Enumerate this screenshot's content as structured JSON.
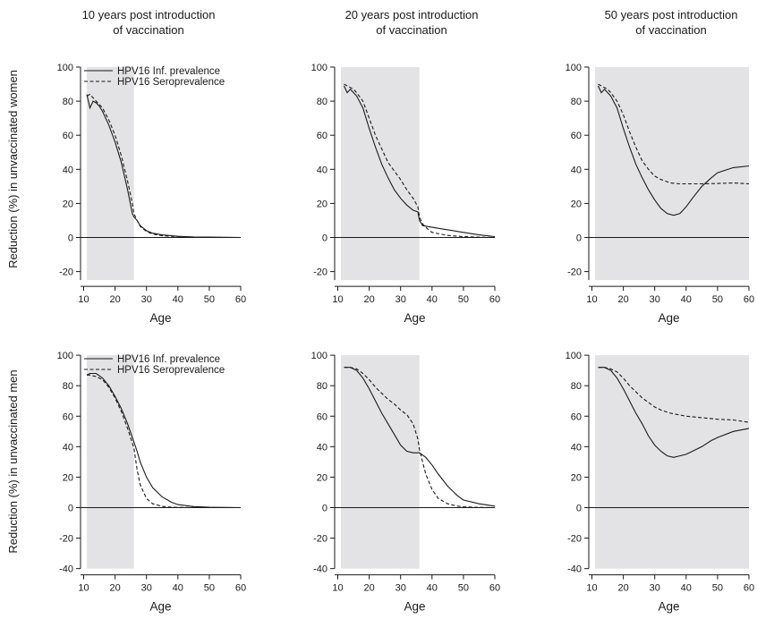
{
  "figure": {
    "column_titles": [
      [
        "10 years post introduction",
        "of vaccination"
      ],
      [
        "20 years post introduction",
        "of vaccination"
      ],
      [
        "50 years post introduction",
        "of vaccination"
      ]
    ],
    "row_labels": [
      "Reduction (%) in unvaccinated women",
      "Reduction (%) in unvaccinated men"
    ]
  },
  "chart_data": [
    {
      "type": "line",
      "row": 0,
      "col": 0,
      "xlabel": "Age",
      "ylabel": "Reduction (%) in unvaccinated women",
      "xlim": [
        9,
        60
      ],
      "ylim": [
        -25,
        100
      ],
      "xticks": [
        10,
        20,
        30,
        40,
        50,
        60
      ],
      "yticks": [
        -20,
        0,
        20,
        40,
        60,
        80,
        100
      ],
      "shaded_region": [
        11,
        26
      ],
      "legend": {
        "position": "top-left",
        "entries": [
          "HPV16 Inf. prevalence",
          "HPV16 Seroprevalence"
        ]
      },
      "series": [
        {
          "name": "HPV16 Inf. prevalence",
          "style": "solid",
          "x": [
            11,
            12,
            13,
            14,
            15,
            16,
            18,
            20,
            22,
            24,
            25.5,
            26,
            27,
            28,
            30,
            32,
            35,
            40,
            45,
            50,
            55,
            60
          ],
          "y": [
            84,
            76,
            80,
            79,
            77,
            74,
            66,
            56,
            44,
            28,
            14,
            12,
            10,
            7,
            4,
            2.5,
            1.5,
            0.7,
            0.3,
            0.2,
            0.1,
            0
          ]
        },
        {
          "name": "HPV16 Seroprevalence",
          "style": "dashed",
          "x": [
            11,
            12,
            13,
            14,
            16,
            18,
            20,
            22,
            24,
            25.5,
            26,
            27,
            28,
            30,
            32,
            35,
            40,
            45,
            50,
            55,
            60
          ],
          "y": [
            83,
            84,
            82,
            80,
            76,
            69,
            60,
            48,
            33,
            20,
            14,
            10,
            6.5,
            3.5,
            2,
            1,
            0.5,
            0.2,
            0.1,
            0,
            0
          ]
        }
      ]
    },
    {
      "type": "line",
      "row": 0,
      "col": 1,
      "xlabel": "Age",
      "ylabel": "",
      "xlim": [
        9,
        60
      ],
      "ylim": [
        -25,
        100
      ],
      "xticks": [
        10,
        20,
        30,
        40,
        50,
        60
      ],
      "yticks": [
        -20,
        0,
        20,
        40,
        60,
        80,
        100
      ],
      "shaded_region": [
        11,
        36
      ],
      "series": [
        {
          "name": "HPV16 Inf. prevalence",
          "style": "solid",
          "x": [
            12,
            13,
            14,
            15,
            16,
            18,
            20,
            22,
            24,
            26,
            28,
            30,
            32,
            34,
            35.5,
            36,
            37,
            40,
            45,
            50,
            55,
            60
          ],
          "y": [
            89,
            85,
            87,
            85,
            83,
            76,
            64,
            53,
            43,
            35,
            28,
            23,
            19,
            16,
            15,
            10,
            7,
            6,
            4.5,
            3,
            1.5,
            0.5
          ]
        },
        {
          "name": "HPV16 Seroprevalence",
          "style": "dashed",
          "x": [
            12,
            13,
            14,
            15,
            16,
            18,
            20,
            22,
            24,
            26,
            28,
            30,
            32,
            34,
            35.5,
            36,
            37,
            38,
            40,
            45,
            50,
            55,
            60
          ],
          "y": [
            90,
            89,
            88,
            87,
            85,
            80,
            70,
            60,
            52,
            44,
            39,
            34,
            28,
            23,
            18,
            12,
            8,
            6,
            3,
            1.2,
            0.5,
            0.2,
            0
          ]
        }
      ]
    },
    {
      "type": "line",
      "row": 0,
      "col": 2,
      "xlabel": "Age",
      "ylabel": "",
      "xlim": [
        9,
        60
      ],
      "ylim": [
        -25,
        100
      ],
      "xticks": [
        10,
        20,
        30,
        40,
        50,
        60
      ],
      "yticks": [
        -20,
        0,
        20,
        40,
        60,
        80,
        100
      ],
      "shaded_region": [
        11,
        60
      ],
      "series": [
        {
          "name": "HPV16 Inf. prevalence",
          "style": "solid",
          "x": [
            12,
            13,
            14,
            15,
            16,
            18,
            20,
            22,
            24,
            26,
            28,
            30,
            32,
            34,
            36,
            38,
            40,
            42,
            45,
            48,
            50,
            55,
            60
          ],
          "y": [
            89,
            85,
            87,
            85,
            83,
            76,
            64,
            53,
            43,
            35,
            28,
            22,
            17,
            14,
            13,
            14,
            18,
            23,
            30,
            35,
            38,
            41,
            42
          ]
        },
        {
          "name": "HPV16 Seroprevalence",
          "style": "dashed",
          "x": [
            12,
            13,
            14,
            15,
            16,
            18,
            20,
            22,
            24,
            26,
            28,
            30,
            32,
            35,
            38,
            40,
            45,
            50,
            55,
            60
          ],
          "y": [
            90,
            89,
            88,
            87,
            85,
            80,
            72,
            62,
            53,
            45,
            40,
            36,
            34,
            32,
            31.5,
            31.5,
            31.5,
            31.7,
            32,
            31.5
          ]
        }
      ]
    },
    {
      "type": "line",
      "row": 1,
      "col": 0,
      "xlabel": "Age",
      "ylabel": "Reduction (%) in unvaccinated men",
      "xlim": [
        9,
        60
      ],
      "ylim": [
        -40,
        100
      ],
      "xticks": [
        10,
        20,
        30,
        40,
        50,
        60
      ],
      "yticks": [
        -40,
        -20,
        0,
        20,
        40,
        60,
        80,
        100
      ],
      "shaded_region": [
        11,
        26
      ],
      "legend": {
        "position": "top-left",
        "entries": [
          "HPV16 Inf. prevalence",
          "HPV16 Seroprevalence"
        ]
      },
      "series": [
        {
          "name": "HPV16 Inf. prevalence",
          "style": "solid",
          "x": [
            11,
            12,
            14,
            16,
            18,
            20,
            22,
            24,
            26,
            27,
            28,
            30,
            32,
            35,
            38,
            40,
            45,
            50,
            55,
            60
          ],
          "y": [
            87,
            88,
            88,
            85,
            80,
            73,
            65,
            55,
            43,
            37,
            30,
            20,
            13,
            7,
            3.5,
            2,
            0.7,
            0.3,
            0.1,
            0
          ]
        },
        {
          "name": "HPV16 Seroprevalence",
          "style": "dashed",
          "x": [
            11,
            12,
            14,
            16,
            18,
            20,
            22,
            24,
            26,
            27,
            28,
            30,
            32,
            35,
            38,
            40,
            45,
            50,
            55,
            60
          ],
          "y": [
            87,
            87,
            86,
            84,
            79,
            72,
            63,
            52,
            39,
            25,
            15,
            6,
            2.5,
            0.8,
            0.3,
            0.2,
            0.1,
            0,
            0,
            0
          ]
        }
      ]
    },
    {
      "type": "line",
      "row": 1,
      "col": 1,
      "xlabel": "Age",
      "ylabel": "",
      "xlim": [
        9,
        60
      ],
      "ylim": [
        -40,
        100
      ],
      "xticks": [
        10,
        20,
        30,
        40,
        50,
        60
      ],
      "yticks": [
        -40,
        -20,
        0,
        20,
        40,
        60,
        80,
        100
      ],
      "shaded_region": [
        11,
        36
      ],
      "series": [
        {
          "name": "HPV16 Inf. prevalence",
          "style": "solid",
          "x": [
            12,
            14,
            16,
            18,
            20,
            22,
            24,
            26,
            28,
            30,
            32,
            34,
            36,
            38,
            40,
            42,
            45,
            48,
            50,
            55,
            60
          ],
          "y": [
            92,
            92,
            90,
            85,
            78,
            70,
            62,
            55,
            48,
            41,
            37,
            36,
            36,
            33,
            28,
            22,
            14,
            8,
            5,
            2.5,
            1
          ]
        },
        {
          "name": "HPV16 Seroprevalence",
          "style": "dashed",
          "x": [
            12,
            14,
            16,
            18,
            20,
            22,
            24,
            26,
            28,
            30,
            32,
            34,
            35.5,
            36,
            37,
            38,
            40,
            42,
            45,
            48,
            50,
            55,
            60
          ],
          "y": [
            92,
            92,
            91,
            88,
            84,
            79,
            75,
            71,
            68,
            64,
            61,
            55,
            45,
            38,
            30,
            22,
            12,
            6,
            2.5,
            1,
            0.5,
            0.2,
            0
          ]
        }
      ]
    },
    {
      "type": "line",
      "row": 1,
      "col": 2,
      "xlabel": "Age",
      "ylabel": "",
      "xlim": [
        9,
        60
      ],
      "ylim": [
        -40,
        100
      ],
      "xticks": [
        10,
        20,
        30,
        40,
        50,
        60
      ],
      "yticks": [
        -40,
        -20,
        0,
        20,
        40,
        60,
        80,
        100
      ],
      "shaded_region": [
        11,
        60
      ],
      "series": [
        {
          "name": "HPV16 Inf. prevalence",
          "style": "solid",
          "x": [
            12,
            14,
            16,
            18,
            20,
            22,
            24,
            26,
            28,
            30,
            32,
            34,
            36,
            38,
            40,
            42,
            45,
            48,
            50,
            55,
            60
          ],
          "y": [
            92,
            92,
            90,
            85,
            78,
            70,
            62,
            55,
            47,
            41,
            37,
            34,
            33,
            34,
            35,
            37,
            40,
            44,
            46,
            50,
            52
          ]
        },
        {
          "name": "HPV16 Seroprevalence",
          "style": "dashed",
          "x": [
            12,
            14,
            16,
            18,
            20,
            22,
            24,
            26,
            28,
            30,
            32,
            35,
            40,
            45,
            50,
            55,
            60
          ],
          "y": [
            92,
            92,
            91,
            89,
            85,
            80,
            76,
            72,
            69,
            66,
            64,
            62,
            60,
            59,
            58,
            57.5,
            56
          ]
        }
      ]
    }
  ]
}
